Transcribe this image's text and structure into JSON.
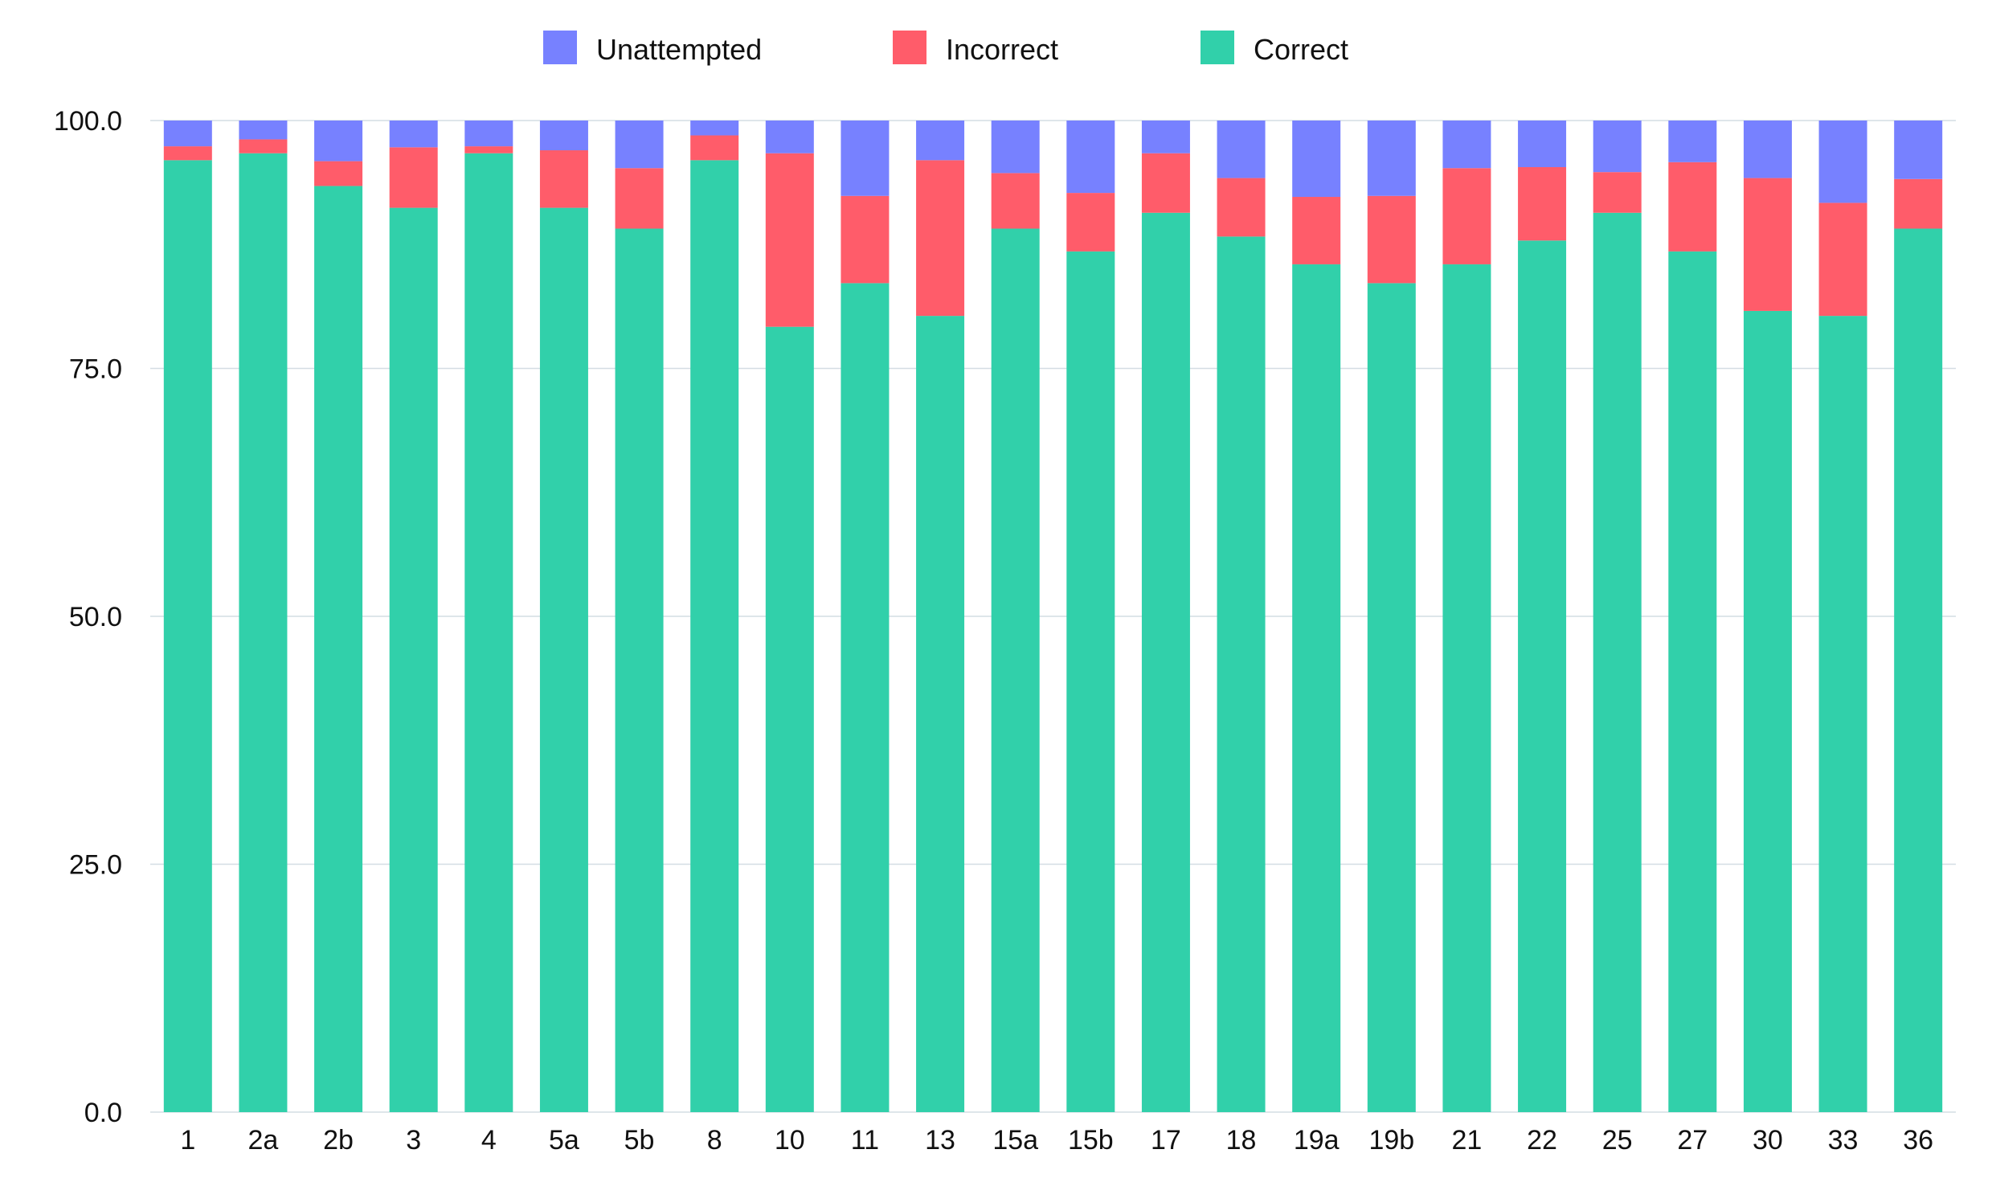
{
  "chart_data": {
    "type": "bar",
    "stacked": true,
    "categories": [
      "1",
      "2a",
      "2b",
      "3",
      "4",
      "5a",
      "5b",
      "8",
      "10",
      "11",
      "13",
      "15a",
      "15b",
      "17",
      "18",
      "19a",
      "19b",
      "21",
      "22",
      "25",
      "27",
      "30",
      "33",
      "36"
    ],
    "series": [
      {
        "name": "Correct",
        "color": "#31d0aa",
        "values": [
          96.0,
          96.7,
          93.4,
          91.2,
          96.7,
          91.2,
          89.1,
          96.0,
          79.2,
          83.6,
          80.3,
          89.1,
          86.8,
          90.7,
          88.3,
          85.5,
          83.6,
          85.5,
          87.9,
          90.7,
          86.8,
          80.8,
          80.3,
          89.1
        ]
      },
      {
        "name": "Incorrect",
        "color": "#ff5c6a",
        "values": [
          1.4,
          1.4,
          2.5,
          6.1,
          0.7,
          5.8,
          6.1,
          2.5,
          17.5,
          8.8,
          15.7,
          5.6,
          5.9,
          6.0,
          5.9,
          6.8,
          8.8,
          9.7,
          7.4,
          4.1,
          9.0,
          13.4,
          11.4,
          5.0
        ]
      },
      {
        "name": "Unattempted",
        "color": "#7781ff",
        "values": [
          2.6,
          1.9,
          4.1,
          2.7,
          2.6,
          3.0,
          4.8,
          1.5,
          3.3,
          7.6,
          4.0,
          5.3,
          7.3,
          3.3,
          5.8,
          7.7,
          7.6,
          4.8,
          4.7,
          5.2,
          4.2,
          5.8,
          8.3,
          5.9
        ]
      }
    ],
    "legend_order": [
      "Unattempted",
      "Incorrect",
      "Correct"
    ],
    "legend_position": "top-center",
    "ylim": [
      0,
      100
    ],
    "yticks": [
      0,
      25,
      50,
      75,
      100
    ],
    "ytick_labels": [
      "0.0",
      "25.0",
      "50.0",
      "75.0",
      "100.0"
    ],
    "grid": true,
    "grid_color": "#d4dde3",
    "title": "",
    "xlabel": "",
    "ylabel": ""
  }
}
